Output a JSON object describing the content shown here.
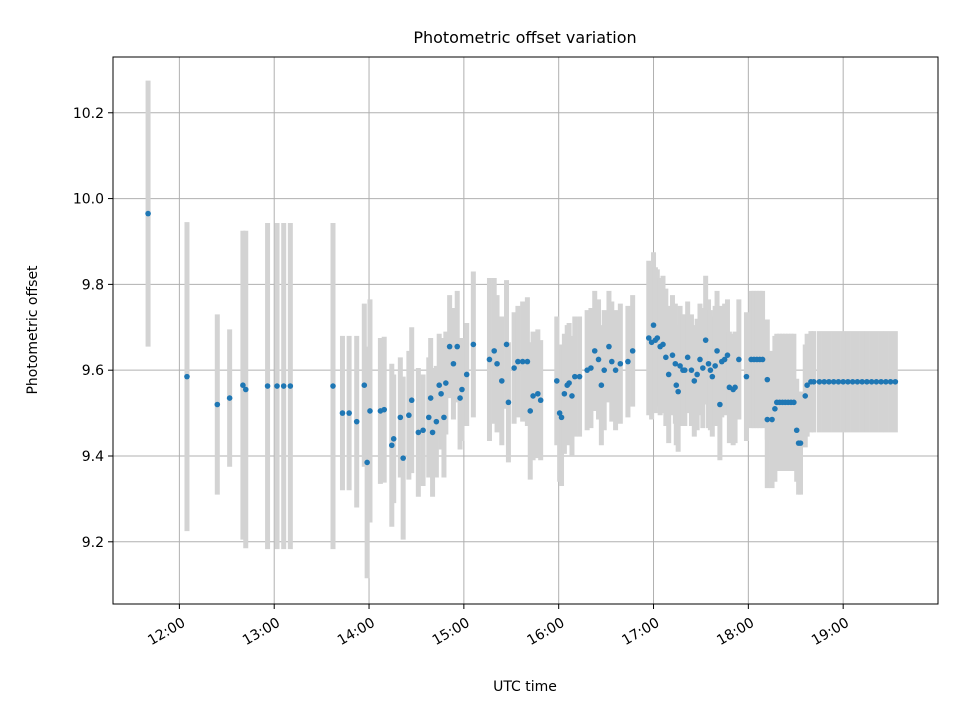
{
  "chart_data": {
    "type": "scatter",
    "title": "Photometric offset variation",
    "xlabel": "UTC time",
    "ylabel": "Photometric offset",
    "x_unit": "hours UTC",
    "xlim": [
      11.3,
      20.0
    ],
    "ylim": [
      9.055,
      10.33
    ],
    "x_ticks": [
      {
        "value": 12,
        "label": "12:00"
      },
      {
        "value": 13,
        "label": "13:00"
      },
      {
        "value": 14,
        "label": "14:00"
      },
      {
        "value": 15,
        "label": "15:00"
      },
      {
        "value": 16,
        "label": "16:00"
      },
      {
        "value": 17,
        "label": "17:00"
      },
      {
        "value": 18,
        "label": "18:00"
      },
      {
        "value": 19,
        "label": "19:00"
      }
    ],
    "y_ticks": [
      {
        "value": 9.2,
        "label": "9.2"
      },
      {
        "value": 9.4,
        "label": "9.4"
      },
      {
        "value": 9.6,
        "label": "9.6"
      },
      {
        "value": 9.8,
        "label": "9.8"
      },
      {
        "value": 10.0,
        "label": "10.0"
      },
      {
        "value": 10.2,
        "label": "10.2"
      }
    ],
    "grid": true,
    "point_color": "#1f77b4",
    "errorbar_color": "#d3d3d3",
    "points": [
      [
        11.67,
        9.965,
        0.31
      ],
      [
        12.08,
        9.585,
        0.36
      ],
      [
        12.4,
        9.52,
        0.21
      ],
      [
        12.53,
        9.535,
        0.16
      ],
      [
        12.67,
        9.565,
        0.36
      ],
      [
        12.7,
        9.555,
        0.37
      ],
      [
        12.93,
        9.563,
        0.38
      ],
      [
        13.03,
        9.563,
        0.38
      ],
      [
        13.1,
        9.563,
        0.38
      ],
      [
        13.17,
        9.563,
        0.38
      ],
      [
        13.62,
        9.563,
        0.38
      ],
      [
        13.72,
        9.5,
        0.18
      ],
      [
        13.79,
        9.5,
        0.18
      ],
      [
        13.87,
        9.48,
        0.2
      ],
      [
        13.95,
        9.565,
        0.19
      ],
      [
        13.98,
        9.385,
        0.27
      ],
      [
        14.01,
        9.505,
        0.26
      ],
      [
        14.12,
        9.505,
        0.17
      ],
      [
        14.16,
        9.508,
        0.17
      ],
      [
        14.24,
        9.425,
        0.19
      ],
      [
        14.26,
        9.44,
        0.15
      ],
      [
        14.33,
        9.49,
        0.14
      ],
      [
        14.36,
        9.395,
        0.19
      ],
      [
        14.42,
        9.495,
        0.15
      ],
      [
        14.45,
        9.53,
        0.17
      ],
      [
        14.52,
        9.455,
        0.15
      ],
      [
        14.57,
        9.46,
        0.13
      ],
      [
        14.63,
        9.49,
        0.14
      ],
      [
        14.65,
        9.535,
        0.14
      ],
      [
        14.67,
        9.455,
        0.15
      ],
      [
        14.71,
        9.48,
        0.13
      ],
      [
        14.74,
        9.565,
        0.12
      ],
      [
        14.76,
        9.545,
        0.13
      ],
      [
        14.79,
        9.49,
        0.14
      ],
      [
        14.81,
        9.57,
        0.12
      ],
      [
        14.85,
        9.655,
        0.12
      ],
      [
        14.89,
        9.615,
        0.13
      ],
      [
        14.93,
        9.655,
        0.13
      ],
      [
        14.96,
        9.535,
        0.12
      ],
      [
        14.98,
        9.555,
        0.12
      ],
      [
        15.03,
        9.59,
        0.12
      ],
      [
        15.1,
        9.66,
        0.17
      ],
      [
        15.27,
        9.625,
        0.19
      ],
      [
        15.32,
        9.645,
        0.17
      ],
      [
        15.35,
        9.615,
        0.16
      ],
      [
        15.4,
        9.575,
        0.15
      ],
      [
        15.45,
        9.66,
        0.15
      ],
      [
        15.47,
        9.525,
        0.14
      ],
      [
        15.53,
        9.605,
        0.13
      ],
      [
        15.57,
        9.62,
        0.13
      ],
      [
        15.62,
        9.62,
        0.14
      ],
      [
        15.67,
        9.62,
        0.15
      ],
      [
        15.7,
        9.505,
        0.16
      ],
      [
        15.73,
        9.54,
        0.15
      ],
      [
        15.78,
        9.545,
        0.15
      ],
      [
        15.81,
        9.53,
        0.14
      ],
      [
        15.98,
        9.575,
        0.15
      ],
      [
        16.01,
        9.5,
        0.16
      ],
      [
        16.03,
        9.49,
        0.16
      ],
      [
        16.06,
        9.545,
        0.14
      ],
      [
        16.09,
        9.565,
        0.14
      ],
      [
        16.11,
        9.57,
        0.14
      ],
      [
        16.14,
        9.54,
        0.14
      ],
      [
        16.17,
        9.585,
        0.14
      ],
      [
        16.22,
        9.585,
        0.14
      ],
      [
        16.3,
        9.6,
        0.14
      ],
      [
        16.34,
        9.605,
        0.14
      ],
      [
        16.38,
        9.645,
        0.14
      ],
      [
        16.42,
        9.625,
        0.14
      ],
      [
        16.45,
        9.565,
        0.14
      ],
      [
        16.48,
        9.6,
        0.14
      ],
      [
        16.53,
        9.655,
        0.13
      ],
      [
        16.56,
        9.62,
        0.14
      ],
      [
        16.6,
        9.6,
        0.14
      ],
      [
        16.65,
        9.615,
        0.14
      ],
      [
        16.73,
        9.62,
        0.13
      ],
      [
        16.78,
        9.645,
        0.13
      ],
      [
        16.95,
        9.675,
        0.18
      ],
      [
        16.98,
        9.665,
        0.18
      ],
      [
        17.0,
        9.705,
        0.17
      ],
      [
        17.02,
        9.67,
        0.17
      ],
      [
        17.04,
        9.675,
        0.16
      ],
      [
        17.07,
        9.655,
        0.16
      ],
      [
        17.1,
        9.66,
        0.16
      ],
      [
        17.13,
        9.63,
        0.16
      ],
      [
        17.16,
        9.59,
        0.16
      ],
      [
        17.2,
        9.635,
        0.14
      ],
      [
        17.23,
        9.615,
        0.14
      ],
      [
        17.24,
        9.565,
        0.14
      ],
      [
        17.26,
        9.55,
        0.14
      ],
      [
        17.28,
        9.61,
        0.14
      ],
      [
        17.31,
        9.6,
        0.13
      ],
      [
        17.33,
        9.6,
        0.13
      ],
      [
        17.36,
        9.63,
        0.13
      ],
      [
        17.4,
        9.6,
        0.13
      ],
      [
        17.43,
        9.575,
        0.13
      ],
      [
        17.46,
        9.59,
        0.13
      ],
      [
        17.49,
        9.625,
        0.13
      ],
      [
        17.52,
        9.605,
        0.14
      ],
      [
        17.55,
        9.67,
        0.15
      ],
      [
        17.58,
        9.615,
        0.15
      ],
      [
        17.6,
        9.6,
        0.14
      ],
      [
        17.62,
        9.585,
        0.14
      ],
      [
        17.65,
        9.61,
        0.14
      ],
      [
        17.67,
        9.645,
        0.14
      ],
      [
        17.7,
        9.52,
        0.13
      ],
      [
        17.72,
        9.62,
        0.13
      ],
      [
        17.75,
        9.625,
        0.13
      ],
      [
        17.78,
        9.635,
        0.13
      ],
      [
        17.8,
        9.56,
        0.13
      ],
      [
        17.84,
        9.555,
        0.13
      ],
      [
        17.86,
        9.56,
        0.13
      ],
      [
        17.9,
        9.625,
        0.14
      ],
      [
        17.98,
        9.585,
        0.15
      ],
      [
        18.03,
        9.625,
        0.16
      ],
      [
        18.06,
        9.625,
        0.16
      ],
      [
        18.09,
        9.625,
        0.16
      ],
      [
        18.12,
        9.625,
        0.16
      ],
      [
        18.15,
        9.625,
        0.16
      ],
      [
        18.2,
        9.578,
        0.14
      ],
      [
        18.2,
        9.485,
        0.16
      ],
      [
        18.25,
        9.485,
        0.16
      ],
      [
        18.28,
        9.51,
        0.17
      ],
      [
        18.3,
        9.525,
        0.16
      ],
      [
        18.33,
        9.525,
        0.16
      ],
      [
        18.36,
        9.525,
        0.16
      ],
      [
        18.39,
        9.525,
        0.16
      ],
      [
        18.42,
        9.525,
        0.16
      ],
      [
        18.45,
        9.525,
        0.16
      ],
      [
        18.48,
        9.525,
        0.16
      ],
      [
        18.51,
        9.46,
        0.12
      ],
      [
        18.53,
        9.43,
        0.12
      ],
      [
        18.55,
        9.43,
        0.12
      ],
      [
        18.6,
        9.54,
        0.12
      ],
      [
        18.62,
        9.565,
        0.12
      ],
      [
        18.66,
        9.573,
        0.118
      ],
      [
        18.69,
        9.573,
        0.118
      ],
      [
        18.75,
        9.573,
        0.118
      ],
      [
        18.8,
        9.573,
        0.118
      ],
      [
        18.85,
        9.573,
        0.118
      ],
      [
        18.9,
        9.573,
        0.118
      ],
      [
        18.95,
        9.573,
        0.118
      ],
      [
        19.0,
        9.573,
        0.118
      ],
      [
        19.05,
        9.573,
        0.118
      ],
      [
        19.1,
        9.573,
        0.118
      ],
      [
        19.15,
        9.573,
        0.118
      ],
      [
        19.2,
        9.573,
        0.118
      ],
      [
        19.25,
        9.573,
        0.118
      ],
      [
        19.3,
        9.573,
        0.118
      ],
      [
        19.35,
        9.573,
        0.118
      ],
      [
        19.4,
        9.573,
        0.118
      ],
      [
        19.45,
        9.573,
        0.118
      ],
      [
        19.5,
        9.573,
        0.118
      ],
      [
        19.55,
        9.573,
        0.118
      ]
    ]
  }
}
